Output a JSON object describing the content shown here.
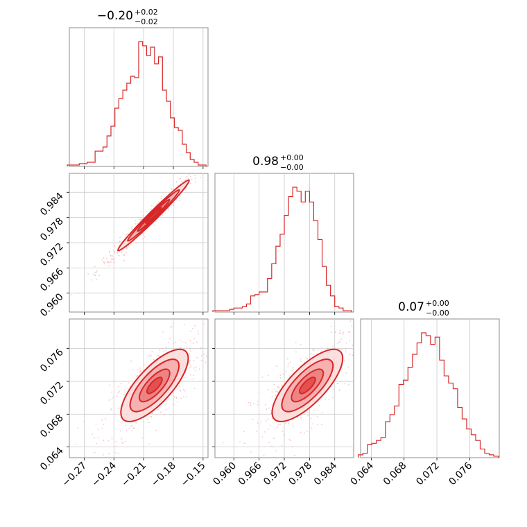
{
  "chart_data": {
    "type": "corner",
    "color": "#d62728",
    "parameters": [
      {
        "id": "p0",
        "title_value": "−0.20",
        "title_plus": "+0.02",
        "title_minus": "−0.02",
        "range": [
          -0.285,
          -0.145
        ]
      },
      {
        "id": "p1",
        "title_value": "0.98",
        "title_plus": "+0.00",
        "title_minus": "−0.00",
        "range": [
          0.9555,
          0.9885
        ]
      },
      {
        "id": "p2",
        "title_value": "0.07",
        "title_plus": "+0.00",
        "title_minus": "−0.00",
        "range": [
          0.0627,
          0.0796
        ]
      }
    ],
    "ticks": {
      "p0": [
        {
          "v": -0.27,
          "label": "−0.27"
        },
        {
          "v": -0.24,
          "label": "−0.24"
        },
        {
          "v": -0.21,
          "label": "−0.21"
        },
        {
          "v": -0.18,
          "label": "−0.18"
        },
        {
          "v": -0.15,
          "label": "−0.15"
        }
      ],
      "p1": [
        {
          "v": 0.96,
          "label": "0.960"
        },
        {
          "v": 0.966,
          "label": "0.966"
        },
        {
          "v": 0.972,
          "label": "0.972"
        },
        {
          "v": 0.978,
          "label": "0.978"
        },
        {
          "v": 0.984,
          "label": "0.984"
        }
      ],
      "p2": [
        {
          "v": 0.064,
          "label": "0.064"
        },
        {
          "v": 0.068,
          "label": "0.068"
        },
        {
          "v": 0.072,
          "label": "0.072"
        },
        {
          "v": 0.076,
          "label": "0.076"
        }
      ]
    },
    "histograms": {
      "p0": {
        "x": [
          -0.285,
          -0.281,
          -0.277,
          -0.273,
          -0.269,
          -0.265,
          -0.261,
          -0.257,
          -0.253,
          -0.249,
          -0.245,
          -0.241,
          -0.237,
          -0.233,
          -0.229,
          -0.225,
          -0.221,
          -0.217,
          -0.213,
          -0.209,
          -0.205,
          -0.201,
          -0.197,
          -0.193,
          -0.189,
          -0.185,
          -0.181,
          -0.177,
          -0.173,
          -0.169,
          -0.165,
          -0.161,
          -0.157,
          -0.153,
          -0.149
        ],
        "counts": [
          1,
          1,
          1,
          2,
          2,
          3,
          3,
          11,
          11,
          14,
          22,
          29,
          42,
          49,
          55,
          60,
          65,
          64,
          90,
          87,
          80,
          86,
          74,
          79,
          55,
          47,
          35,
          28,
          26,
          16,
          10,
          5,
          3,
          1,
          1
        ]
      },
      "p1": {
        "x": [
          0.9555,
          0.9565,
          0.9575,
          0.9585,
          0.9595,
          0.9605,
          0.9615,
          0.9625,
          0.9635,
          0.9645,
          0.9655,
          0.9665,
          0.9675,
          0.9685,
          0.9695,
          0.9705,
          0.9715,
          0.9725,
          0.9735,
          0.9745,
          0.9755,
          0.9765,
          0.9775,
          0.9785,
          0.9795,
          0.9805,
          0.9815,
          0.9825,
          0.9835,
          0.9845,
          0.9855,
          0.9865,
          0.9875
        ],
        "counts": [
          1,
          1,
          1,
          1,
          2,
          3,
          3,
          4,
          6,
          12,
          13,
          15,
          15,
          25,
          36,
          49,
          58,
          72,
          86,
          93,
          90,
          82,
          90,
          82,
          68,
          54,
          34,
          20,
          12,
          4,
          3,
          1,
          1
        ]
      },
      "p2": {
        "x": [
          0.0627,
          0.06325,
          0.0638,
          0.06435,
          0.0649,
          0.06545,
          0.066,
          0.06655,
          0.0671,
          0.06765,
          0.0682,
          0.06875,
          0.0693,
          0.06985,
          0.0704,
          0.07095,
          0.0715,
          0.07205,
          0.0726,
          0.07315,
          0.0737,
          0.07425,
          0.0748,
          0.07535,
          0.0759,
          0.07645,
          0.077,
          0.07755,
          0.0781,
          0.07865,
          0.0792
        ],
        "counts": [
          2,
          3,
          9,
          10,
          12,
          14,
          25,
          30,
          36,
          51,
          54,
          63,
          72,
          80,
          87,
          85,
          79,
          84,
          68,
          57,
          52,
          48,
          35,
          27,
          20,
          16,
          12,
          6,
          3,
          2,
          1
        ]
      }
    },
    "scatter_panels": [
      {
        "id": "p1_vs_p0",
        "x": "p0",
        "y": "p1",
        "center": [
          -0.2,
          0.9785
        ],
        "corr": 0.985,
        "sd": [
          0.018,
          0.0042
        ],
        "slope_scale": 1.0
      },
      {
        "id": "p2_vs_p0",
        "x": "p0",
        "y": "p2",
        "center": [
          -0.199,
          0.0715
        ],
        "corr": 0.75,
        "sd": [
          0.017,
          0.0022
        ]
      },
      {
        "id": "p2_vs_p1",
        "x": "p1",
        "y": "p2",
        "center": [
          0.9775,
          0.0715
        ],
        "corr": 0.75,
        "sd": [
          0.0042,
          0.0022
        ]
      }
    ]
  }
}
